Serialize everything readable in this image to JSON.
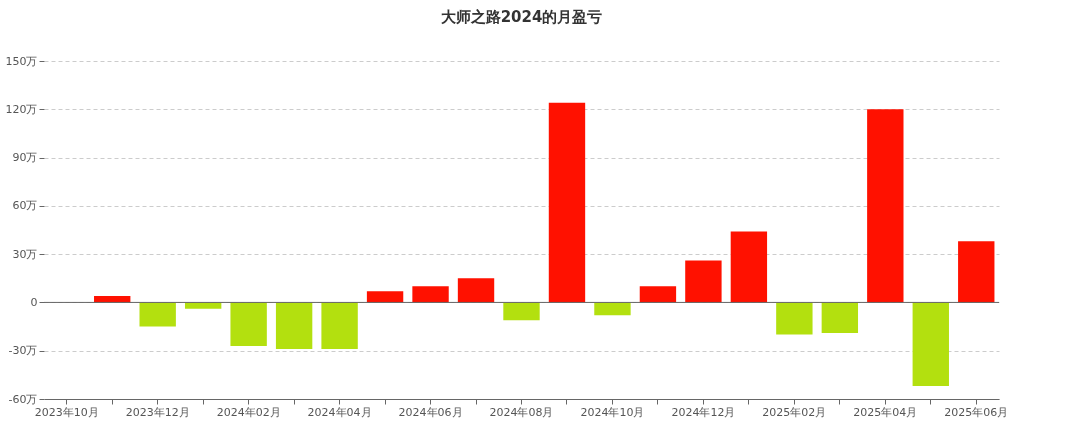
{
  "chart_data": {
    "type": "bar",
    "title": "大师之路2024的月盈亏",
    "categories": [
      "2023年10月",
      null,
      "2023年12月",
      null,
      "2024年02月",
      null,
      "2024年04月",
      null,
      "2024年06月",
      null,
      "2024年08月",
      null,
      "2024年10月",
      null,
      "2024年12月",
      null,
      "2025年02月",
      null,
      "2025年04月",
      null,
      "2025年06月"
    ],
    "values": [
      0,
      4,
      -15,
      -4,
      -27,
      -29,
      -29,
      7,
      10,
      15,
      -11,
      124,
      -8,
      10,
      26,
      44,
      -20,
      -19,
      120,
      -52,
      38
    ],
    "colors": [
      "#ff1100",
      "#ff1100",
      "#b3e00f",
      "#b3e00f",
      "#b3e00f",
      "#b3e00f",
      "#b3e00f",
      "#ff1100",
      "#ff1100",
      "#ff1100",
      "#b3e00f",
      "#ff1100",
      "#b3e00f",
      "#ff1100",
      "#ff1100",
      "#ff1100",
      "#b3e00f",
      "#b3e00f",
      "#ff1100",
      "#b3e00f",
      "#ff1100"
    ],
    "ylim": [
      -60,
      150
    ],
    "yticks": [
      {
        "value": -60,
        "label": "-60万"
      },
      {
        "value": -30,
        "label": "-30万"
      },
      0,
      {
        "value": 30,
        "label": "30万"
      },
      {
        "value": 60,
        "label": "60万"
      },
      {
        "value": 90,
        "label": "90万"
      },
      {
        "value": 120,
        "label": "120万"
      },
      {
        "value": 150,
        "label": "150万"
      }
    ],
    "grid": "y"
  }
}
